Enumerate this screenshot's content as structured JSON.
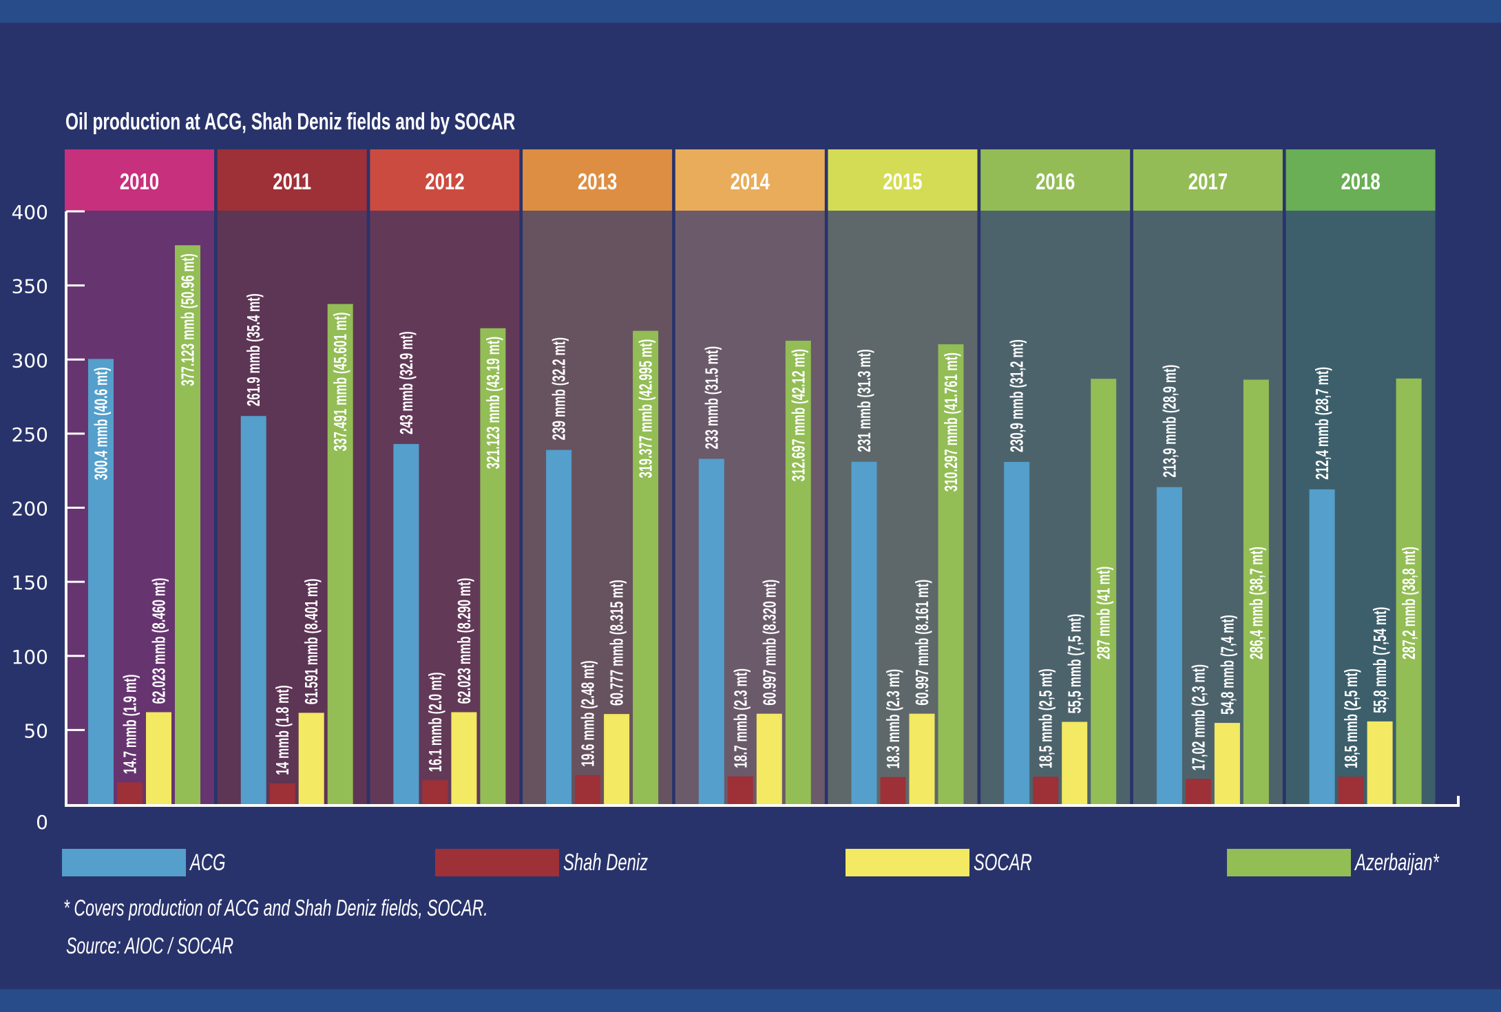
{
  "page": {
    "title": "Oil production at ACG, Shah Deniz fields and by SOCAR",
    "footnote": "* Covers production of ACG and Shah Deniz fields, SOCAR.",
    "source": "Source: AIOC / SOCAR",
    "colors": {
      "background": "#29336B",
      "strip": "#284C8A"
    }
  },
  "chart_data": {
    "type": "bar",
    "title": "Oil production at ACG, Shah Deniz fields and by SOCAR",
    "xlabel": "",
    "ylabel": "",
    "ylim": [
      0,
      400
    ],
    "yticks": [
      0,
      50,
      100,
      150,
      200,
      250,
      300,
      350,
      400
    ],
    "grid": false,
    "legend_position": "bottom",
    "categories": [
      "2010",
      "2011",
      "2012",
      "2013",
      "2014",
      "2015",
      "2016",
      "2017",
      "2018"
    ],
    "year_header_colors": [
      "#C7307C",
      "#9E3037",
      "#CC4B40",
      "#DE8E42",
      "#E8AC5A",
      "#D4DC55",
      "#94BC56",
      "#94BC56",
      "#6AAE55"
    ],
    "year_panel_colors": [
      "#663570",
      "#5D3555",
      "#623A58",
      "#67525F",
      "#6A5A6A",
      "#5E686B",
      "#4D636C",
      "#4D636C",
      "#3C5F6B"
    ],
    "series": [
      {
        "name": "ACG",
        "color": "#549FCB",
        "values": [
          300.4,
          261.9,
          243,
          239,
          233,
          231,
          230.9,
          213.9,
          212.4
        ],
        "labels": [
          "300.4 mmb (40.6 mt)",
          "261.9 mmb (35.4 mt)",
          "243 mmb (32.9 mt)",
          "239 mmb (32.2 mt)",
          "233 mmb (31.5 mt)",
          "231 mmb (31.3 mt)",
          "230,9 mmb (31,2 mt)",
          "213,9 mmb (28,9 mt)",
          "212,4 mmb (28,7 mt)"
        ]
      },
      {
        "name": "Shah Deniz",
        "color": "#9E3037",
        "values": [
          14.7,
          14,
          16.1,
          19.6,
          18.7,
          18.3,
          18.5,
          17.02,
          18.5
        ],
        "labels": [
          "14.7 mmb (1.9 mt)",
          "14 mmb (1.8 mt)",
          "16.1 mmb (2.0 mt)",
          "19.6 mmb (2.48 mt)",
          "18.7 mmb (2.3 mt)",
          "18.3 mmb (2.3 mt)",
          "18,5 mmb (2,5 mt)",
          "17,02 mmb (2,3 mt)",
          "18,5 mmb (2,5 mt)"
        ]
      },
      {
        "name": "SOCAR",
        "color": "#F3E962",
        "values": [
          62.023,
          61.591,
          62.023,
          60.777,
          60.997,
          60.997,
          55.5,
          54.8,
          55.8
        ],
        "labels": [
          "62.023 mmb (8.460 mt)",
          "61.591 mmb (8.401 mt)",
          "62.023 mmb (8.290 mt)",
          "60.777 mmb (8.315 mt)",
          "60.997 mmb (8.320 mt)",
          "60.997 mmb (8.161 mt)",
          "55,5 mmb  (7,5 mt)",
          "54,8 mmb (7,4 mt)",
          "55,8 mmb (7,54 mt)"
        ]
      },
      {
        "name": "Azerbaijan*",
        "color": "#93BD55",
        "values": [
          377.123,
          337.491,
          321.123,
          319.377,
          312.697,
          310.297,
          287,
          286.4,
          287.2
        ],
        "labels": [
          "377.123 mmb (50.96 mt)",
          "337.491 mmb (45.601 mt)",
          "321.123 mmb (43.19 mt)",
          "319.377 mmb (42.995 mt)",
          "312.697 mmb (42.12 mt)",
          "310.297 mmb (41.761 mt)",
          "287 mmb (41 mt)",
          "286,4 mmb (38,7 mt)",
          "287,2 mmb (38,8 mt)"
        ]
      }
    ]
  },
  "legend": [
    {
      "label": "ACG",
      "color": "#549FCB"
    },
    {
      "label": "Shah Deniz",
      "color": "#9E3037"
    },
    {
      "label": "SOCAR",
      "color": "#F3E962"
    },
    {
      "label": "Azerbaijan*",
      "color": "#93BD55"
    }
  ]
}
